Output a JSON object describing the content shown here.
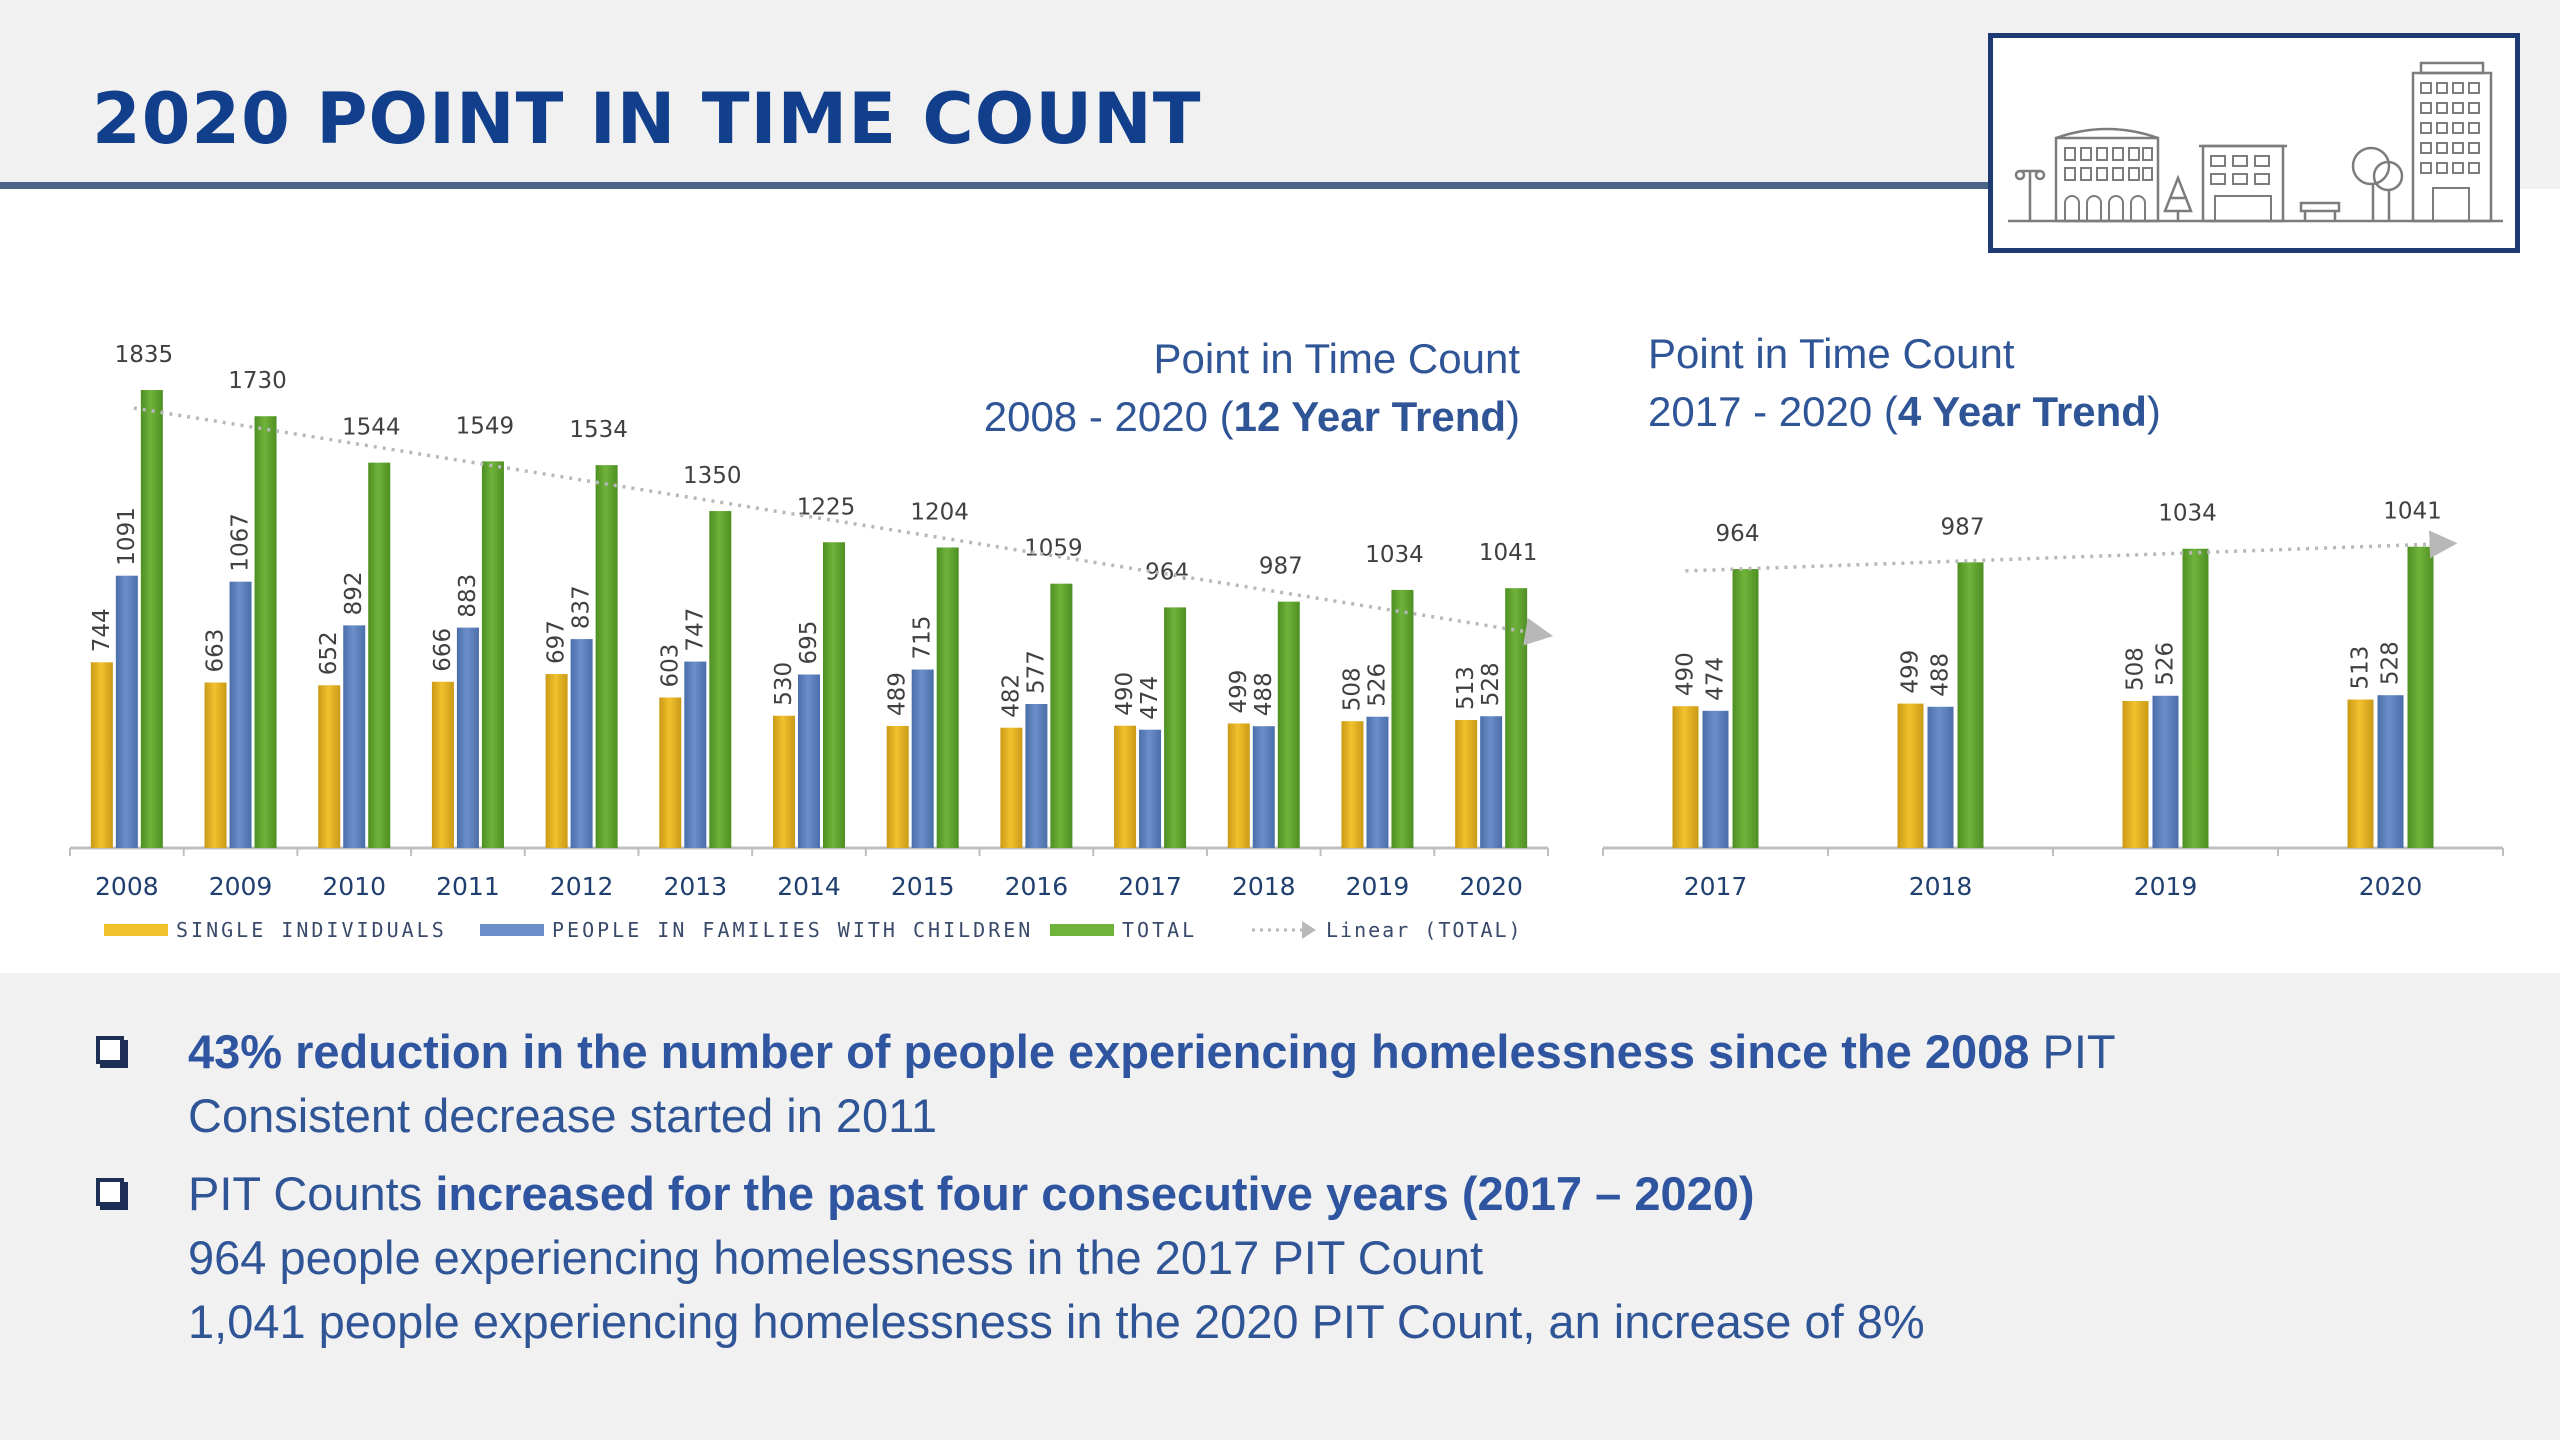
{
  "page": {
    "title": "2020 POINT IN TIME COUNT"
  },
  "colors": {
    "single": "#f2c12e",
    "families": "#6d8fc9",
    "total": "#70b33b",
    "title": "#123f8c",
    "text": "#2f5597"
  },
  "chart_12yr": {
    "title_line1": "Point in Time Count",
    "title_line2_prefix": "2008 - 2020 (",
    "title_line2_bold": "12 Year Trend",
    "title_line2_suffix": ")"
  },
  "chart_4yr": {
    "title_line1": "Point in Time Count",
    "title_line2_prefix": "2017 - 2020 (",
    "title_line2_bold": "4 Year Trend",
    "title_line2_suffix": ")"
  },
  "chart_data": [
    {
      "type": "bar",
      "title": "Point in Time Count 2008 - 2020 (12 Year Trend)",
      "categories": [
        "2008",
        "2009",
        "2010",
        "2011",
        "2012",
        "2013",
        "2014",
        "2015",
        "2016",
        "2017",
        "2018",
        "2019",
        "2020"
      ],
      "series": [
        {
          "name": "SINGLE INDIVIDUALS",
          "values": [
            744,
            663,
            652,
            666,
            697,
            603,
            530,
            489,
            482,
            490,
            499,
            508,
            513
          ]
        },
        {
          "name": "PEOPLE IN FAMILIES WITH CHILDREN",
          "values": [
            1091,
            1067,
            892,
            883,
            837,
            747,
            695,
            715,
            577,
            474,
            488,
            526,
            528
          ]
        },
        {
          "name": "TOTAL",
          "values": [
            1835,
            1730,
            1544,
            1549,
            1534,
            1350,
            1225,
            1204,
            1059,
            964,
            987,
            1034,
            1041
          ]
        }
      ],
      "trendline": {
        "name": "Linear (TOTAL)",
        "of": "TOTAL"
      },
      "ylim": [
        0,
        1900
      ],
      "legend": "bottom",
      "grid": false
    },
    {
      "type": "bar",
      "title": "Point in Time Count 2017 - 2020 (4 Year Trend)",
      "categories": [
        "2017",
        "2018",
        "2019",
        "2020"
      ],
      "series": [
        {
          "name": "SINGLE INDIVIDUALS",
          "values": [
            490,
            499,
            508,
            513
          ]
        },
        {
          "name": "PEOPLE IN FAMILIES WITH CHILDREN",
          "values": [
            474,
            488,
            526,
            528
          ]
        },
        {
          "name": "TOTAL",
          "values": [
            964,
            987,
            1034,
            1041
          ]
        }
      ],
      "trendline": {
        "of": "TOTAL"
      },
      "ylim": [
        0,
        1100
      ],
      "legend": "none",
      "grid": false
    }
  ],
  "bullets": [
    {
      "line1_bold": "43% reduction in the number of people experiencing homelessness since the 2008",
      "line1_rest": " PIT",
      "line2": "Consistent decrease started in 2011"
    },
    {
      "line1_plain": "PIT Counts ",
      "line1_bold": "increased for the past four consecutive years (2017 – 2020)",
      "line2": "964 people experiencing homelessness in the 2017 PIT Count",
      "line3": "1,041 people experiencing homelessness in the 2020 PIT Count, an increase of 8%"
    }
  ]
}
